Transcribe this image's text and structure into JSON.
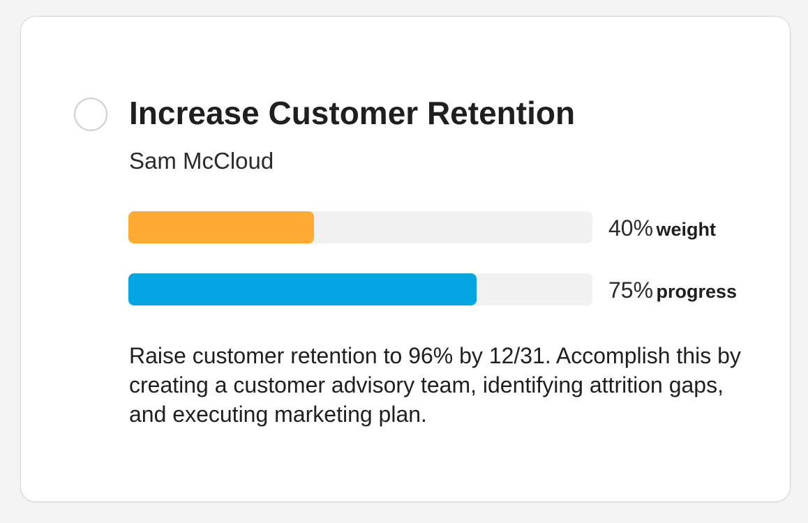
{
  "goal": {
    "title": "Increase Customer Retention",
    "owner": "Sam McCloud",
    "description": "Raise customer retention to 96% by 12/31. Accomplish this by creating a customer advisory team, identifying attrition gaps, and executing marketing plan."
  },
  "weight": {
    "value": 40,
    "value_label": "40%",
    "label": "weight",
    "color": "#ffab33"
  },
  "progress": {
    "value": 75,
    "value_label": "75%",
    "label": "progress",
    "color": "#03a5e3"
  },
  "icons": {
    "complete_toggle": "circle-checkbox-icon"
  }
}
